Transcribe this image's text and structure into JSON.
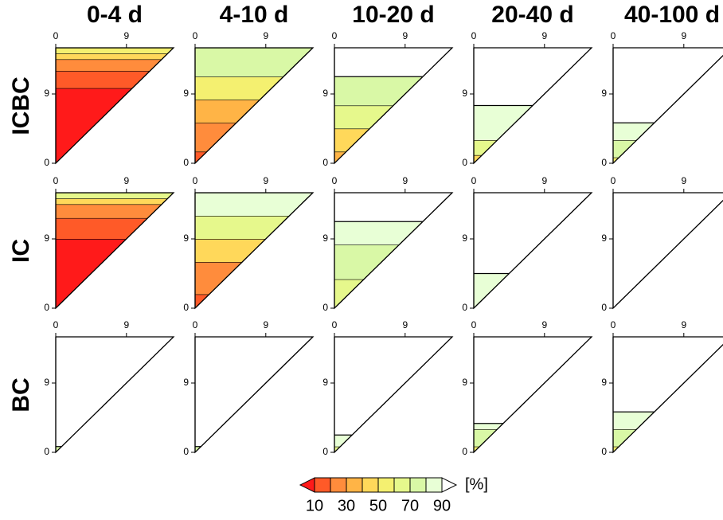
{
  "chart_data": {
    "type": "contour",
    "columns": [
      "0-4 d",
      "4-10 d",
      "10-20 d",
      "20-40 d",
      "40-100 d"
    ],
    "rows": [
      "ICBC",
      "IC",
      "BC"
    ],
    "xlim": [
      0,
      15
    ],
    "ylim": [
      0,
      15
    ],
    "xticks": [
      0,
      9
    ],
    "yticks": [
      0,
      9
    ],
    "colorbar": {
      "levels": [
        10,
        20,
        30,
        40,
        50,
        60,
        70,
        80,
        90
      ],
      "ticks": [
        10,
        30,
        50,
        70,
        90
      ],
      "unit": "[%]",
      "colors": [
        "#ff1a1a",
        "#ff5a28",
        "#ff8c3c",
        "#ffb446",
        "#ffd85a",
        "#f4f070",
        "#e6f88c",
        "#d9f8a6",
        "#e8ffd6",
        "#ffffff"
      ]
    }
  }
}
